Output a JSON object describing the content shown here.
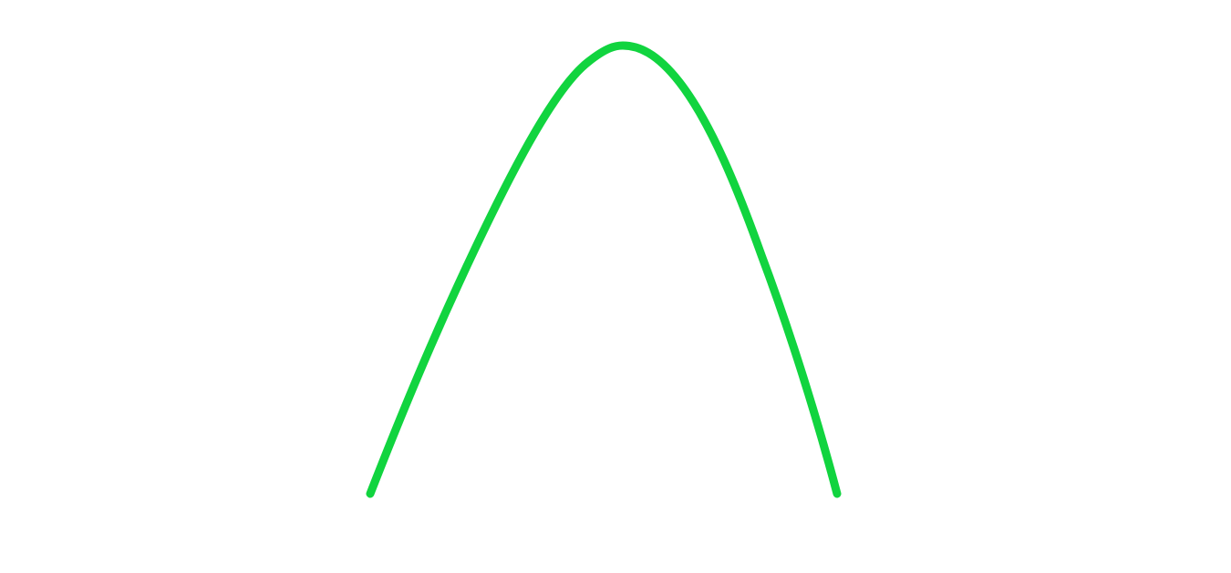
{
  "graphic": {
    "shape": "arch-curve",
    "stroke_color": "#11d43f",
    "background_color": "#ffffff"
  }
}
